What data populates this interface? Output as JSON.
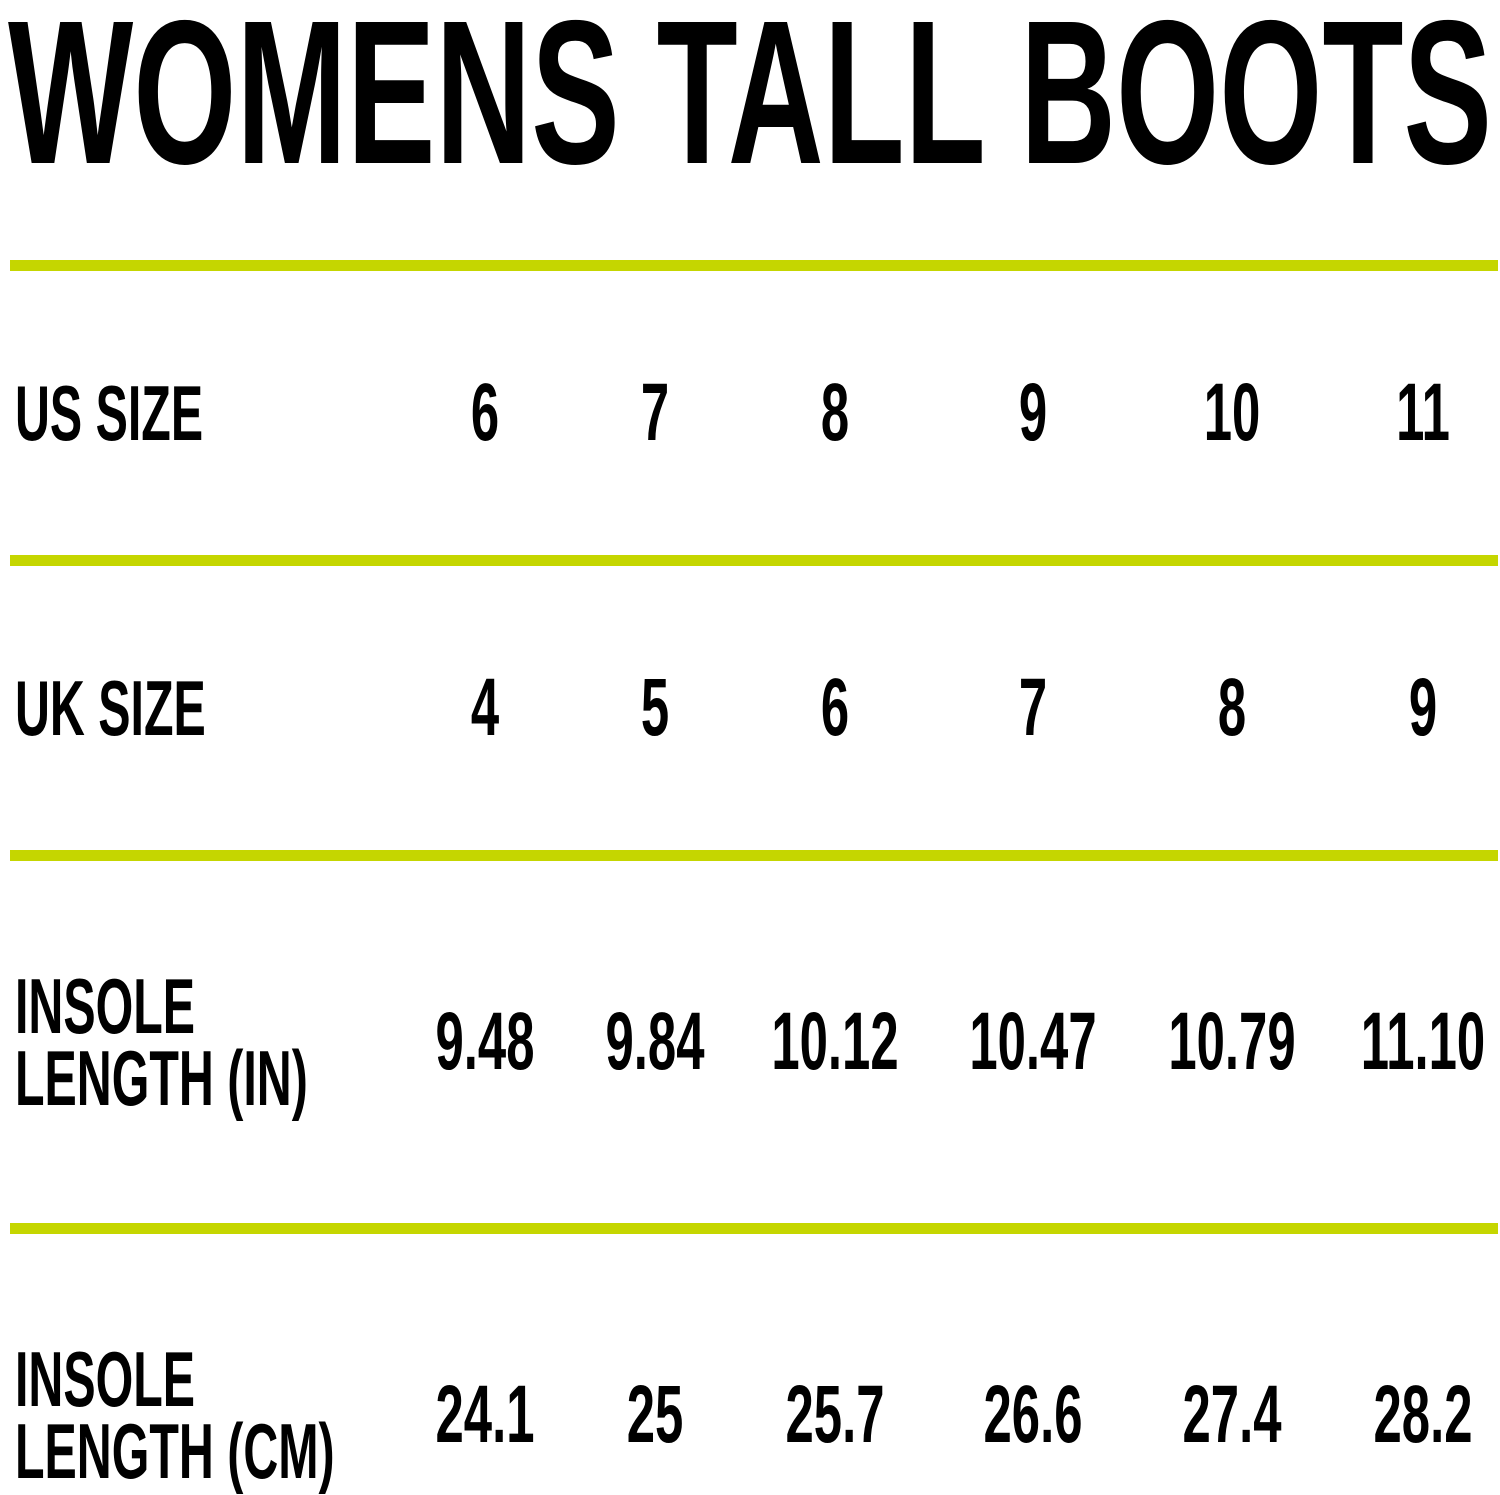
{
  "title": "WOMENS TALL BOOTS",
  "accent_color": "#c5d600",
  "table": {
    "rows": [
      {
        "label": [
          "US SIZE"
        ],
        "values": [
          "6",
          "7",
          "8",
          "9",
          "10",
          "11"
        ]
      },
      {
        "label": [
          "UK SIZE"
        ],
        "values": [
          "4",
          "5",
          "6",
          "7",
          "8",
          "9"
        ]
      },
      {
        "label": [
          "INSOLE",
          "LENGTH (IN)"
        ],
        "values": [
          "9.48",
          "9.84",
          "10.12",
          "10.47",
          "10.79",
          "11.10"
        ]
      },
      {
        "label": [
          "INSOLE",
          "LENGTH (CM)"
        ],
        "values": [
          "24.1",
          "25",
          "25.7",
          "26.6",
          "27.4",
          "28.2"
        ]
      }
    ]
  }
}
